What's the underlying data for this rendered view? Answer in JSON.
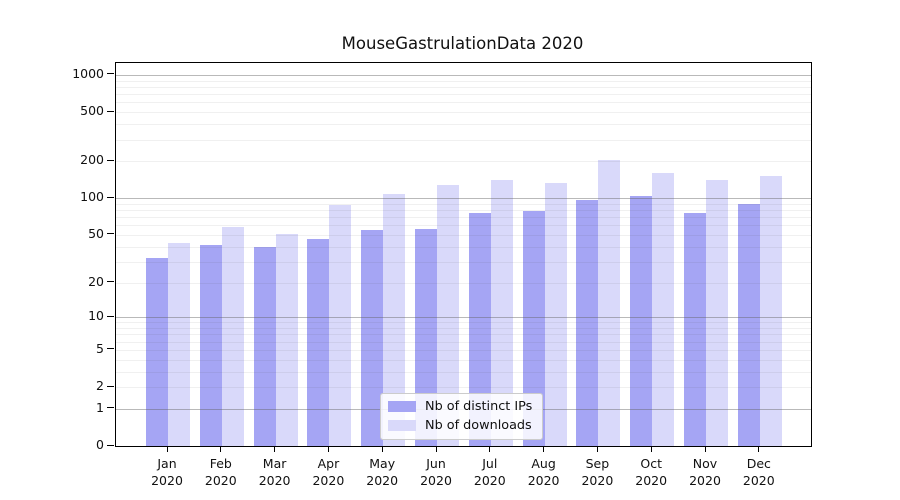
{
  "chart_data": {
    "type": "bar",
    "title": "MouseGastrulationData 2020",
    "categories": [
      {
        "month": "Jan",
        "year": "2020"
      },
      {
        "month": "Feb",
        "year": "2020"
      },
      {
        "month": "Mar",
        "year": "2020"
      },
      {
        "month": "Apr",
        "year": "2020"
      },
      {
        "month": "May",
        "year": "2020"
      },
      {
        "month": "Jun",
        "year": "2020"
      },
      {
        "month": "Jul",
        "year": "2020"
      },
      {
        "month": "Aug",
        "year": "2020"
      },
      {
        "month": "Sep",
        "year": "2020"
      },
      {
        "month": "Oct",
        "year": "2020"
      },
      {
        "month": "Nov",
        "year": "2020"
      },
      {
        "month": "Dec",
        "year": "2020"
      }
    ],
    "series": [
      {
        "name": "Nb of distinct IPs",
        "color": "#a5a5f4",
        "values": [
          32,
          41,
          40,
          46,
          55,
          56,
          76,
          79,
          97,
          105,
          75,
          90
        ]
      },
      {
        "name": "Nb of downloads",
        "color": "#d9d9fa",
        "values": [
          43,
          58,
          51,
          88,
          108,
          128,
          140,
          134,
          203,
          160,
          141,
          152
        ]
      }
    ],
    "yaxis": {
      "scale": "log(1+y)",
      "ticks": [
        {
          "value": 1000,
          "label": "1000"
        },
        {
          "value": 500,
          "label": "500"
        },
        {
          "value": 200,
          "label": "200"
        },
        {
          "value": 100,
          "label": "100"
        },
        {
          "value": 50,
          "label": "50"
        },
        {
          "value": 20,
          "label": "20"
        },
        {
          "value": 10,
          "label": "10"
        },
        {
          "value": 5,
          "label": "5"
        },
        {
          "value": 2,
          "label": "2"
        },
        {
          "value": 1,
          "label": "1"
        },
        {
          "value": 0,
          "label": "0"
        }
      ],
      "major_gridlines": [
        1,
        10,
        100,
        1000
      ]
    },
    "grid": true,
    "legend_position": "bottom-center",
    "xlabel": "",
    "ylabel": ""
  },
  "colors": {
    "axis": "#000000",
    "major_grid": "#b4b4b4",
    "minor_grid": "#ebebeb",
    "background": "#ffffff"
  }
}
